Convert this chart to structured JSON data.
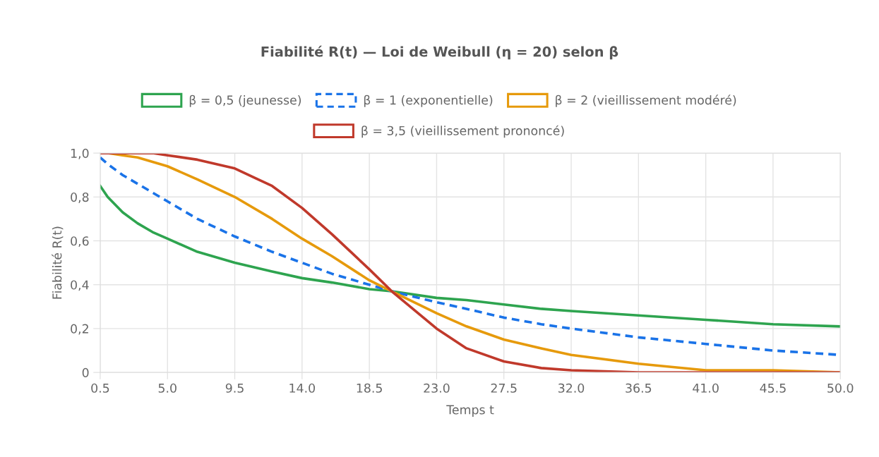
{
  "chart_data": {
    "type": "line",
    "title": "Fiabilité R(t) — Loi de Weibull (η = 20) selon β",
    "xlabel": "Temps t",
    "ylabel": "Fiabilité R(t)",
    "x": [
      0.5,
      1,
      2,
      3,
      4,
      5,
      7,
      9.5,
      12,
      14,
      16,
      18.5,
      20,
      23,
      25,
      27.5,
      30,
      32,
      36.5,
      41,
      45.5,
      50
    ],
    "series": [
      {
        "name": "β = 0,5 (jeunesse)",
        "color": "#2ea44f",
        "line_style": "solid",
        "values": [
          0.85,
          0.8,
          0.73,
          0.68,
          0.64,
          0.61,
          0.55,
          0.5,
          0.46,
          0.43,
          0.41,
          0.38,
          0.37,
          0.34,
          0.33,
          0.31,
          0.29,
          0.28,
          0.26,
          0.24,
          0.22,
          0.21
        ]
      },
      {
        "name": "β = 1 (exponentielle)",
        "color": "#1a73e8",
        "line_style": "dashed",
        "values": [
          0.98,
          0.95,
          0.9,
          0.86,
          0.82,
          0.78,
          0.7,
          0.62,
          0.55,
          0.5,
          0.45,
          0.4,
          0.37,
          0.32,
          0.29,
          0.25,
          0.22,
          0.2,
          0.16,
          0.13,
          0.1,
          0.08
        ]
      },
      {
        "name": "β = 2 (vieillissement modéré)",
        "color": "#e69a0c",
        "line_style": "solid",
        "values": [
          1.0,
          1.0,
          0.99,
          0.98,
          0.96,
          0.94,
          0.88,
          0.8,
          0.7,
          0.61,
          0.53,
          0.42,
          0.37,
          0.27,
          0.21,
          0.15,
          0.11,
          0.08,
          0.04,
          0.01,
          0.01,
          0.0
        ]
      },
      {
        "name": "β = 3,5 (vieillissement prononcé)",
        "color": "#c0392b",
        "line_style": "solid",
        "values": [
          1.0,
          1.0,
          1.0,
          1.0,
          1.0,
          0.99,
          0.97,
          0.93,
          0.85,
          0.75,
          0.63,
          0.47,
          0.37,
          0.2,
          0.11,
          0.05,
          0.02,
          0.01,
          0.0,
          0.0,
          0.0,
          0.0
        ]
      }
    ],
    "xlim": [
      0.5,
      50
    ],
    "xticks": [
      {
        "value": 0.5,
        "label": "0.5"
      },
      {
        "value": 5,
        "label": "5.0"
      },
      {
        "value": 9.5,
        "label": "9.5"
      },
      {
        "value": 14,
        "label": "14.0"
      },
      {
        "value": 18.5,
        "label": "18.5"
      },
      {
        "value": 23,
        "label": "23.0"
      },
      {
        "value": 27.5,
        "label": "27.5"
      },
      {
        "value": 32,
        "label": "32.0"
      },
      {
        "value": 36.5,
        "label": "36.5"
      },
      {
        "value": 41,
        "label": "41.0"
      },
      {
        "value": 45.5,
        "label": "45.5"
      },
      {
        "value": 50,
        "label": "50.0"
      }
    ],
    "ylim": [
      0,
      1
    ],
    "yticks": [
      0,
      {
        "value": 0.2,
        "label": "0,2"
      },
      {
        "value": 0.4,
        "label": "0,4"
      },
      {
        "value": 0.6,
        "label": "0,6"
      },
      {
        "value": 0.8,
        "label": "0,8"
      },
      {
        "value": 1,
        "label": "1,0"
      }
    ],
    "grid": true,
    "legend": "top",
    "marker": "none"
  }
}
